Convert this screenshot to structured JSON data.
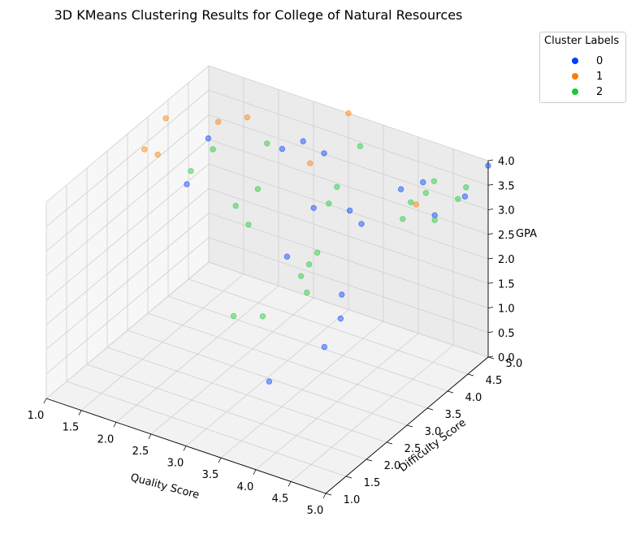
{
  "chart_data": {
    "type": "scatter",
    "title": "3D KMeans Clustering Results for College of Natural Resources",
    "xlabel": "Quality Score",
    "ylabel": "Difficulty Score",
    "zlabel": "GPA",
    "xlim": [
      1.0,
      5.0
    ],
    "ylim": [
      1.0,
      5.0
    ],
    "zlim": [
      0.0,
      4.0
    ],
    "x_ticks": [
      "1.0",
      "1.5",
      "2.0",
      "2.5",
      "3.0",
      "3.5",
      "4.0",
      "4.5",
      "5.0"
    ],
    "y_ticks": [
      "1.0",
      "1.5",
      "2.0",
      "2.5",
      "3.0",
      "3.5",
      "4.0",
      "4.5",
      "5.0"
    ],
    "z_ticks": [
      "0.0",
      "0.5",
      "1.0",
      "1.5",
      "2.0",
      "2.5",
      "3.0",
      "3.5",
      "4.0"
    ],
    "grid": true,
    "legend": {
      "title": "Cluster Labels",
      "position": "outside-top-right"
    },
    "series": [
      {
        "name": "0",
        "color": "#023eff",
        "points": [
          [
            1.4,
            4.3,
            3.2
          ],
          [
            2.4,
            4.4,
            3.4
          ],
          [
            2.7,
            4.4,
            3.7
          ],
          [
            3.0,
            4.4,
            3.6
          ],
          [
            3.2,
            3.8,
            3.0
          ],
          [
            3.6,
            4.0,
            3.0
          ],
          [
            4.1,
            4.4,
            3.4
          ],
          [
            4.3,
            4.6,
            3.5
          ],
          [
            4.7,
            4.2,
            3.3
          ],
          [
            4.9,
            4.6,
            3.5
          ],
          [
            5.0,
            5.0,
            3.9
          ],
          [
            4.0,
            3.6,
            3.2
          ],
          [
            3.4,
            2.8,
            2.8
          ],
          [
            4.3,
            2.6,
            2.6
          ],
          [
            4.4,
            2.4,
            2.3
          ],
          [
            4.4,
            2.0,
            2.0
          ],
          [
            3.9,
            1.5,
            1.4
          ],
          [
            1.5,
            3.6,
            2.8
          ]
        ]
      },
      {
        "name": "1",
        "color": "#ff7c00",
        "points": [
          [
            1.3,
            2.9,
            3.9
          ],
          [
            1.2,
            3.6,
            4.0
          ],
          [
            1.2,
            3.4,
            3.4
          ],
          [
            1.6,
            4.2,
            3.7
          ],
          [
            1.9,
            4.4,
            3.8
          ],
          [
            3.0,
            5.0,
            4.0
          ],
          [
            2.8,
            4.4,
            3.3
          ],
          [
            4.2,
            4.6,
            3.0
          ]
        ]
      },
      {
        "name": "2",
        "color": "#1ac938",
        "points": [
          [
            1.5,
            3.7,
            3.0
          ],
          [
            1.7,
            3.9,
            3.4
          ],
          [
            2.3,
            4.2,
            3.6
          ],
          [
            3.4,
            4.6,
            3.8
          ],
          [
            2.2,
            3.6,
            2.7
          ],
          [
            2.4,
            3.8,
            3.0
          ],
          [
            3.3,
            4.2,
            3.2
          ],
          [
            3.3,
            4.0,
            3.0
          ],
          [
            4.4,
            4.5,
            3.4
          ],
          [
            4.4,
            4.7,
            3.5
          ],
          [
            4.8,
            4.8,
            3.5
          ],
          [
            4.8,
            4.6,
            3.4
          ],
          [
            4.7,
            4.2,
            3.2
          ],
          [
            4.3,
            4.1,
            3.1
          ],
          [
            4.3,
            4.3,
            3.3
          ],
          [
            2.5,
            3.4,
            2.6
          ],
          [
            3.6,
            3.2,
            2.7
          ],
          [
            3.6,
            3.0,
            2.6
          ],
          [
            3.6,
            2.8,
            2.5
          ],
          [
            3.8,
            2.6,
            2.4
          ],
          [
            3.4,
            2.2,
            2.0
          ],
          [
            3.1,
            2.0,
            2.0
          ]
        ]
      }
    ]
  }
}
